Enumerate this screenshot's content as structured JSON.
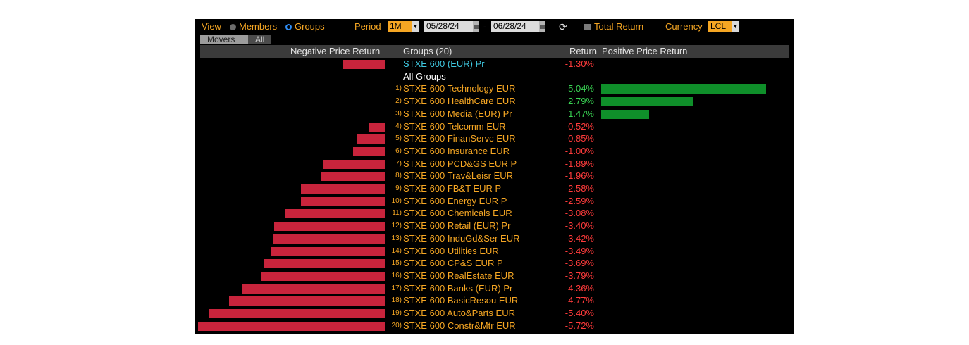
{
  "toolbar": {
    "view_label": "View",
    "members_label": "Members",
    "groups_label": "Groups",
    "period_label": "Period",
    "period_value": "1M",
    "start_date": "05/28/24",
    "date_separator": "-",
    "end_date": "06/28/24",
    "refresh_symbol": "⟳",
    "total_return_label": "Total Return",
    "currency_label": "Currency",
    "currency_value": "LCL"
  },
  "tabs": [
    "Movers",
    "All"
  ],
  "header": {
    "negative": "Negative Price Return",
    "groups": "Groups (20)",
    "return": "Return",
    "positive": "Positive Price Return"
  },
  "colors": {
    "accent": "#f5a623",
    "negative": "#ff3b3b",
    "positive": "#39d353",
    "neg_bar": "#c8243c",
    "pos_bar": "#0f8f2a",
    "benchmark": "#3fc8e0"
  },
  "benchmark": {
    "name": "STXE 600 (EUR) Pr",
    "return": -1.3,
    "return_text": "-1.30%"
  },
  "all_groups_label": "All Groups",
  "groups": [
    {
      "rank": "1)",
      "name": "STXE 600 Technology EUR",
      "return": 5.04,
      "return_text": "5.04%"
    },
    {
      "rank": "2)",
      "name": "STXE 600 HealthCare EUR",
      "return": 2.79,
      "return_text": "2.79%"
    },
    {
      "rank": "3)",
      "name": "STXE 600 Media (EUR) Pr",
      "return": 1.47,
      "return_text": "1.47%"
    },
    {
      "rank": "4)",
      "name": "STXE 600 Telcomm EUR",
      "return": -0.52,
      "return_text": "-0.52%"
    },
    {
      "rank": "5)",
      "name": "STXE 600 FinanServc EUR",
      "return": -0.85,
      "return_text": "-0.85%"
    },
    {
      "rank": "6)",
      "name": "STXE 600 Insurance EUR",
      "return": -1.0,
      "return_text": "-1.00%"
    },
    {
      "rank": "7)",
      "name": "STXE 600 PCD&GS EUR P",
      "return": -1.89,
      "return_text": "-1.89%"
    },
    {
      "rank": "8)",
      "name": "STXE 600 Trav&Leisr EUR",
      "return": -1.96,
      "return_text": "-1.96%"
    },
    {
      "rank": "9)",
      "name": "STXE 600 FB&T EUR P",
      "return": -2.58,
      "return_text": "-2.58%"
    },
    {
      "rank": "10)",
      "name": "STXE 600 Energy EUR P",
      "return": -2.59,
      "return_text": "-2.59%"
    },
    {
      "rank": "11)",
      "name": "STXE 600 Chemicals EUR",
      "return": -3.08,
      "return_text": "-3.08%"
    },
    {
      "rank": "12)",
      "name": "STXE 600 Retail (EUR) Pr",
      "return": -3.4,
      "return_text": "-3.40%"
    },
    {
      "rank": "13)",
      "name": "STXE 600 InduGd&Ser EUR",
      "return": -3.42,
      "return_text": "-3.42%"
    },
    {
      "rank": "14)",
      "name": "STXE 600 Utilities EUR",
      "return": -3.49,
      "return_text": "-3.49%"
    },
    {
      "rank": "15)",
      "name": "STXE 600 CP&S EUR P",
      "return": -3.69,
      "return_text": "-3.69%"
    },
    {
      "rank": "16)",
      "name": "STXE 600 RealEstate EUR",
      "return": -3.79,
      "return_text": "-3.79%"
    },
    {
      "rank": "17)",
      "name": "STXE 600 Banks (EUR) Pr",
      "return": -4.36,
      "return_text": "-4.36%"
    },
    {
      "rank": "18)",
      "name": "STXE 600 BasicResou EUR",
      "return": -4.77,
      "return_text": "-4.77%"
    },
    {
      "rank": "19)",
      "name": "STXE 600 Auto&Parts EUR",
      "return": -5.4,
      "return_text": "-5.40%"
    },
    {
      "rank": "20)",
      "name": "STXE 600 Constr&Mtr EUR",
      "return": -5.72,
      "return_text": "-5.72%"
    }
  ]
}
